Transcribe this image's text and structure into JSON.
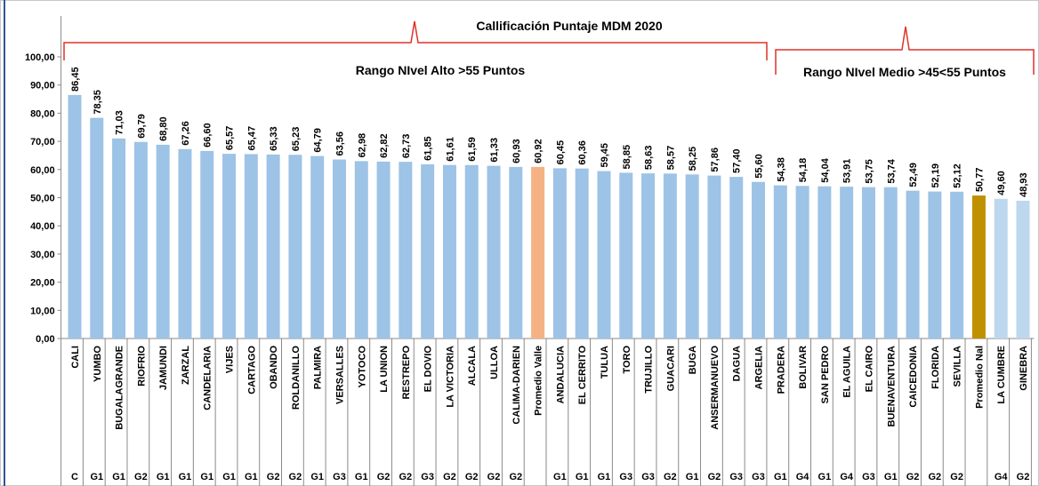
{
  "chart_data": {
    "type": "bar",
    "title": "Callificación Puntaje MDM 2020",
    "annotations": [
      "Rango NIvel Alto >55 Puntos",
      "Rango NIvel Medio >45<55 Puntos"
    ],
    "categories": [
      "CALI",
      "YUMBO",
      "BUGALAGRANDE",
      "RIOFRIO",
      "JAMUNDI",
      "ZARZAL",
      "CANDELARIA",
      "VIJES",
      "CARTAGO",
      "OBANDO",
      "ROLDANILLO",
      "PALMIRA",
      "VERSALLES",
      "YOTOCO",
      "LA UNION",
      "RESTREPO",
      "EL DOVIO",
      "LA VICTORIA",
      "ALCALA",
      "ULLOA",
      "CALIMA-DARIEN",
      "Promedio Valle",
      "ANDALUCIA",
      "EL CERRITO",
      "TULUA",
      "TORO",
      "TRUJILLO",
      "GUACARI",
      "BUGA",
      "ANSERMANUEVO",
      "DAGUA",
      "ARGELIA",
      "PRADERA",
      "BOLIVAR",
      "SAN PEDRO",
      "EL AGUILA",
      "EL CAIRO",
      "BUENAVENTURA",
      "CAICEDONIA",
      "FLORIDA",
      "SEVILLA",
      "Promedio Nal",
      "LA CUMBRE",
      "GINEBRA"
    ],
    "groups": [
      "C",
      "G1",
      "G1",
      "G2",
      "G1",
      "G1",
      "G1",
      "G1",
      "G1",
      "G2",
      "G2",
      "G1",
      "G3",
      "G1",
      "G2",
      "G2",
      "G3",
      "G2",
      "G2",
      "G2",
      "G2",
      null,
      "G1",
      "G1",
      "G1",
      "G3",
      "G3",
      "G2",
      "G1",
      "G2",
      "G3",
      "G3",
      "G1",
      "G4",
      "G1",
      "G4",
      "G3",
      "G1",
      "G2",
      "G2",
      "G2",
      null,
      "G4",
      "G2"
    ],
    "values": [
      86.45,
      78.35,
      71.03,
      69.79,
      68.8,
      67.26,
      66.6,
      65.57,
      65.47,
      65.33,
      65.23,
      64.79,
      63.56,
      62.98,
      62.82,
      62.73,
      61.85,
      61.61,
      61.59,
      61.33,
      60.93,
      60.92,
      60.45,
      60.36,
      59.45,
      58.85,
      58.63,
      58.57,
      58.25,
      57.86,
      57.4,
      55.6,
      54.38,
      54.18,
      54.04,
      53.91,
      53.75,
      53.74,
      52.49,
      52.19,
      52.12,
      50.77,
      49.6,
      48.93
    ],
    "value_labels": [
      "86,45",
      "78,35",
      "71,03",
      "69,79",
      "68,80",
      "67,26",
      "66,60",
      "65,57",
      "65,47",
      "65,33",
      "65,23",
      "64,79",
      "63,56",
      "62,98",
      "62,82",
      "62,73",
      "61,85",
      "61,61",
      "61,59",
      "61,33",
      "60,93",
      "60,92",
      "60,45",
      "60,36",
      "59,45",
      "58,85",
      "58,63",
      "58,57",
      "58,25",
      "57,86",
      "57,40",
      "55,60",
      "54,38",
      "54,18",
      "54,04",
      "53,91",
      "53,75",
      "53,74",
      "52,49",
      "52,19",
      "52,12",
      "50,77",
      "49,60",
      "48,93"
    ],
    "colors": [
      "#9dc3e6",
      "#9dc3e6",
      "#9dc3e6",
      "#9dc3e6",
      "#9dc3e6",
      "#9dc3e6",
      "#9dc3e6",
      "#9dc3e6",
      "#9dc3e6",
      "#9dc3e6",
      "#9dc3e6",
      "#9dc3e6",
      "#9dc3e6",
      "#9dc3e6",
      "#9dc3e6",
      "#9dc3e6",
      "#9dc3e6",
      "#9dc3e6",
      "#9dc3e6",
      "#9dc3e6",
      "#9dc3e6",
      "#f4b183",
      "#9dc3e6",
      "#9dc3e6",
      "#9dc3e6",
      "#9dc3e6",
      "#9dc3e6",
      "#9dc3e6",
      "#9dc3e6",
      "#9dc3e6",
      "#9dc3e6",
      "#9dc3e6",
      "#9dc3e6",
      "#9dc3e6",
      "#9dc3e6",
      "#9dc3e6",
      "#9dc3e6",
      "#9dc3e6",
      "#9dc3e6",
      "#9dc3e6",
      "#9dc3e6",
      "#bf9000",
      "#bdd7ee",
      "#bdd7ee"
    ],
    "ylim": [
      0,
      100
    ],
    "yticks": [
      {
        "value": 0,
        "label": "0,00"
      },
      {
        "value": 10,
        "label": "10,00"
      },
      {
        "value": 20,
        "label": "20,00"
      },
      {
        "value": 30,
        "label": "30,00"
      },
      {
        "value": 40,
        "label": "40,00"
      },
      {
        "value": 50,
        "label": "50,00"
      },
      {
        "value": 60,
        "label": "60,00"
      },
      {
        "value": 70,
        "label": "70,00"
      },
      {
        "value": 80,
        "label": "80,00"
      },
      {
        "value": 90,
        "label": "90,00"
      },
      {
        "value": 100,
        "label": "100,00"
      }
    ],
    "grid": false
  }
}
